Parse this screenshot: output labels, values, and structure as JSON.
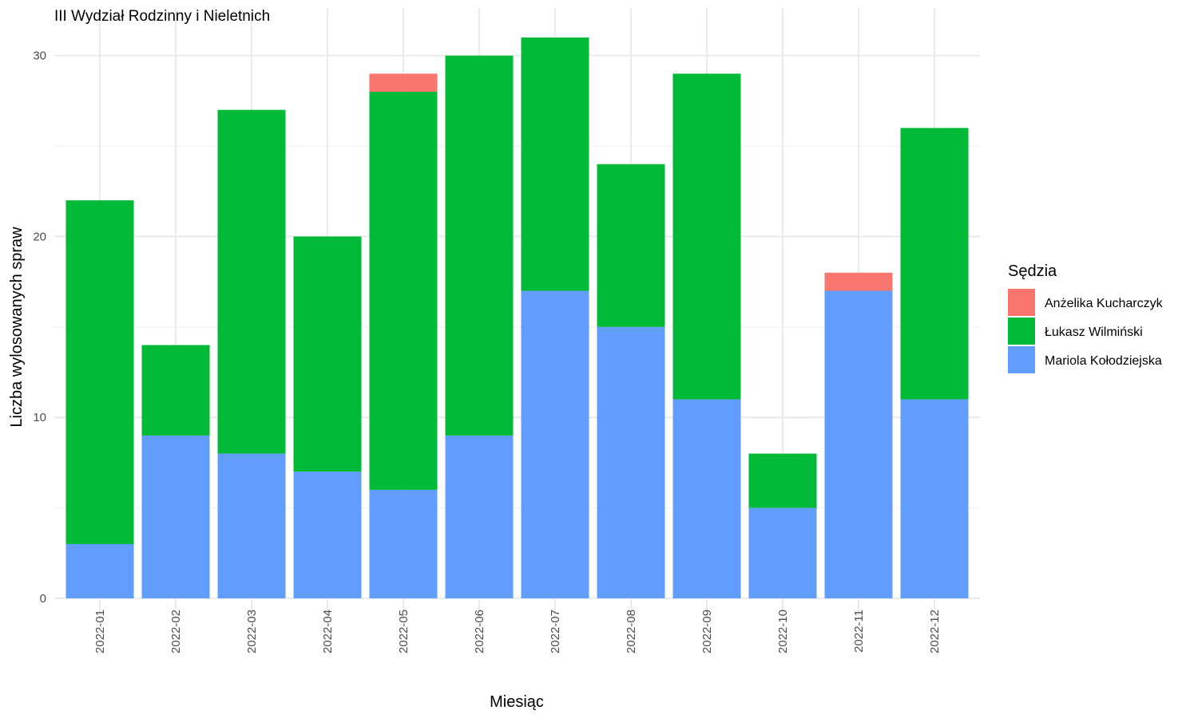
{
  "chart_data": {
    "type": "bar",
    "stacked": true,
    "title": "III Wydział Rodzinny i Nieletnich",
    "xlabel": "Miesiąc",
    "ylabel": "Liczba wylosowanych spraw",
    "ylim": [
      0,
      31
    ],
    "yticks": [
      0,
      10,
      20,
      30
    ],
    "grid": true,
    "legend_title": "Sędzia",
    "legend_position": "right",
    "categories": [
      "2022-01",
      "2022-02",
      "2022-03",
      "2022-04",
      "2022-05",
      "2022-06",
      "2022-07",
      "2022-08",
      "2022-09",
      "2022-10",
      "2022-11",
      "2022-12"
    ],
    "series": [
      {
        "name": "Mariola Kołodziejska",
        "color": "#619CFF",
        "values": [
          3,
          9,
          8,
          7,
          6,
          9,
          17,
          15,
          11,
          5,
          17,
          11
        ]
      },
      {
        "name": "Łukasz Wilmiński",
        "color": "#00BA38",
        "values": [
          19,
          5,
          19,
          13,
          22,
          21,
          14,
          9,
          18,
          3,
          0,
          15
        ]
      },
      {
        "name": "Anżelika Kucharczyk",
        "color": "#F8766D",
        "values": [
          0,
          0,
          0,
          0,
          1,
          0,
          0,
          0,
          0,
          0,
          1,
          0
        ]
      }
    ],
    "legend_order": [
      "Anżelika Kucharczyk",
      "Łukasz Wilmiński",
      "Mariola Kołodziejska"
    ]
  }
}
